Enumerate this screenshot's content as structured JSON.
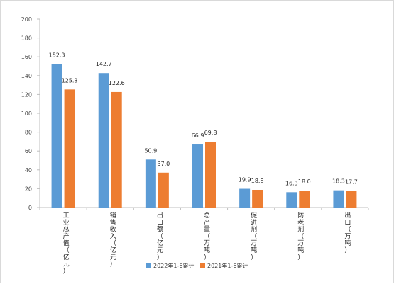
{
  "chart_data": {
    "type": "bar",
    "categories": [
      "工业总产值（亿元）",
      "销售收入（亿元）",
      "出口额（亿元）",
      "总产量（万吨）",
      "促进剂（万吨）",
      "防老剂（万吨）",
      "出口（万吨）"
    ],
    "series": [
      {
        "name": "2022年1-6累计",
        "color": "#5B9BD5",
        "values": [
          152.3,
          142.7,
          50.9,
          66.9,
          19.9,
          16.3,
          18.3
        ],
        "labels": [
          "152.3",
          "142.7",
          "50.9",
          "66.9",
          "19.9",
          "16.3",
          "18.3"
        ]
      },
      {
        "name": "2021年1-6累计",
        "color": "#ED7D31",
        "values": [
          125.3,
          122.6,
          37.0,
          69.8,
          18.8,
          18.0,
          17.7
        ],
        "labels": [
          "125.3",
          "122.6",
          "37.0",
          "69.8",
          "18.8",
          "18.0",
          "17.7"
        ]
      }
    ],
    "ylim": [
      0,
      200
    ],
    "yticks": [
      0,
      20,
      40,
      60,
      80,
      100,
      120,
      140,
      160,
      180,
      200
    ],
    "grid": false,
    "legend": "bottom",
    "title": "",
    "xlabel": "",
    "ylabel": ""
  }
}
